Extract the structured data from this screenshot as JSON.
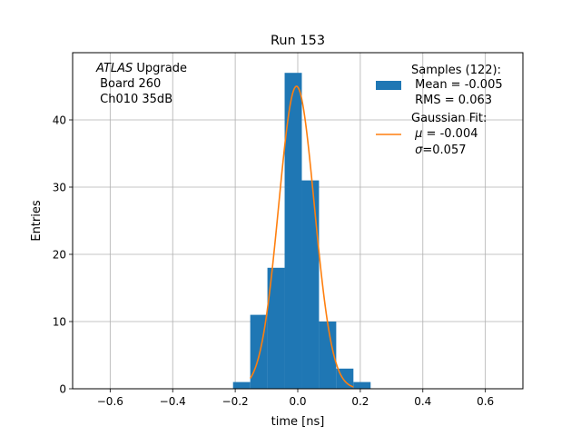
{
  "chart_data": {
    "type": "bar",
    "title": "Run 153",
    "xlabel": "time [ns]",
    "ylabel": "Entries",
    "xlim": [
      -0.72,
      0.72
    ],
    "ylim": [
      0,
      50
    ],
    "grid": true,
    "legend_position": "top-right",
    "x_ticks": [
      -0.6,
      -0.4,
      -0.2,
      0.0,
      0.2,
      0.4,
      0.6
    ],
    "x_tick_labels": [
      "−0.6",
      "−0.4",
      "−0.2",
      "0.0",
      "0.2",
      "0.4",
      "0.6"
    ],
    "y_ticks": [
      0,
      10,
      20,
      30,
      40
    ],
    "y_tick_labels": [
      "0",
      "10",
      "20",
      "30",
      "40"
    ],
    "annotation": {
      "italic": "ATLAS",
      "line1_rest": " Upgrade",
      "line2": " Board 260",
      "line3": " Ch010 35dB"
    },
    "histogram": {
      "name": "Samples (122):",
      "color": "#1f77b4",
      "bin_edges": [
        -0.207,
        -0.152,
        -0.097,
        -0.042,
        0.013,
        0.068,
        0.123,
        0.178,
        0.233
      ],
      "counts": [
        1,
        11,
        18,
        47,
        31,
        10,
        3,
        1
      ]
    },
    "fit": {
      "name": "Gaussian Fit:",
      "color": "#ff7f0e",
      "mu": -0.004,
      "sigma": 0.057,
      "amplitude": 45,
      "x_range": [
        -0.152,
        0.178
      ]
    },
    "legend": {
      "hist_lines": [
        "Samples (122):",
        " Mean = -0.005",
        " RMS = 0.063"
      ],
      "fit_line1": "Gaussian Fit:",
      "fit_mu_symbol": "μ",
      "fit_mu_value": " = -0.004",
      "fit_sigma_symbol": "σ",
      "fit_sigma_value": "=0.057"
    }
  }
}
